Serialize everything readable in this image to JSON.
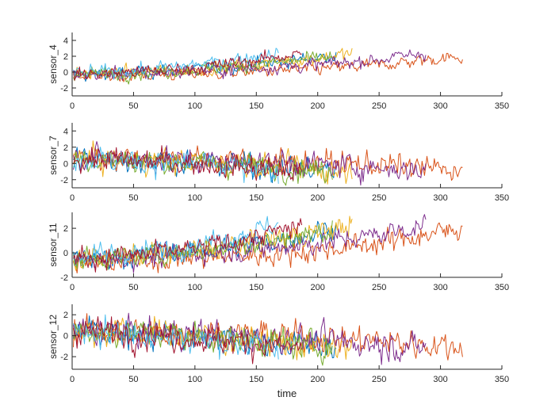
{
  "chart_data": [
    {
      "type": "line",
      "ylabel": "sensor_4",
      "xlim": [
        0,
        350
      ],
      "ylim": [
        -3,
        5
      ],
      "xticks": [
        0,
        50,
        100,
        150,
        200,
        250,
        300,
        350
      ],
      "yticks": [
        -2,
        0,
        2,
        4
      ],
      "series": [
        {
          "x": [
            0,
            50,
            100,
            150,
            200,
            215
          ],
          "y": [
            -0.4,
            -0.1,
            0.3,
            0.9,
            1.9,
            2.2
          ]
        },
        {
          "x": [
            0,
            50,
            100,
            150,
            200,
            250,
            318
          ],
          "y": [
            -0.5,
            -0.4,
            -0.2,
            0.1,
            0.4,
            0.9,
            2.0
          ]
        },
        {
          "x": [
            0,
            50,
            100,
            150,
            200,
            228
          ],
          "y": [
            -0.3,
            -0.1,
            0.3,
            1.1,
            1.8,
            2.4
          ]
        },
        {
          "x": [
            0,
            50,
            100,
            150,
            200,
            250,
            288
          ],
          "y": [
            -0.4,
            -0.2,
            0.1,
            0.5,
            0.9,
            1.6,
            2.4
          ]
        },
        {
          "x": [
            0,
            50,
            100,
            150,
            200,
            212
          ],
          "y": [
            -0.3,
            -0.1,
            0.3,
            1.0,
            1.7,
            2.0
          ]
        },
        {
          "x": [
            0,
            50,
            100,
            150,
            168
          ],
          "y": [
            -0.2,
            0.2,
            0.9,
            2.0,
            2.5
          ]
        },
        {
          "x": [
            0,
            50,
            100,
            150,
            187
          ],
          "y": [
            -0.3,
            0.0,
            0.5,
            1.5,
            2.4
          ]
        }
      ]
    },
    {
      "type": "line",
      "ylabel": "sensor_7",
      "xlim": [
        0,
        350
      ],
      "ylim": [
        -3,
        5
      ],
      "xticks": [
        0,
        50,
        100,
        150,
        200,
        250,
        300,
        350
      ],
      "yticks": [
        -2,
        0,
        2,
        4
      ],
      "series": [
        {
          "x": [
            0,
            50,
            100,
            150,
            200,
            215
          ],
          "y": [
            0.6,
            0.4,
            0.1,
            -0.3,
            -0.8,
            -1.0
          ]
        },
        {
          "x": [
            0,
            50,
            100,
            150,
            200,
            250,
            318
          ],
          "y": [
            0.7,
            0.6,
            0.5,
            0.3,
            0.1,
            -0.2,
            -0.9
          ]
        },
        {
          "x": [
            0,
            50,
            100,
            150,
            200,
            228
          ],
          "y": [
            0.6,
            0.4,
            0.2,
            -0.3,
            -0.8,
            -1.0
          ]
        },
        {
          "x": [
            0,
            50,
            100,
            150,
            200,
            250,
            288
          ],
          "y": [
            0.7,
            0.5,
            0.3,
            0.1,
            -0.2,
            -0.5,
            -0.9
          ]
        },
        {
          "x": [
            0,
            50,
            100,
            150,
            200,
            212
          ],
          "y": [
            0.6,
            0.4,
            0.1,
            -0.3,
            -0.8,
            -0.9
          ]
        },
        {
          "x": [
            0,
            50,
            100,
            150,
            168
          ],
          "y": [
            0.6,
            0.3,
            -0.2,
            -0.9,
            -1.3
          ]
        },
        {
          "x": [
            0,
            50,
            100,
            150,
            187
          ],
          "y": [
            0.7,
            0.4,
            0.0,
            -0.6,
            -1.1
          ]
        }
      ]
    },
    {
      "type": "line",
      "ylabel": "sensor_11",
      "xlim": [
        0,
        350
      ],
      "ylim": [
        -2,
        3.3
      ],
      "xticks": [
        0,
        50,
        100,
        150,
        200,
        250,
        300,
        350
      ],
      "yticks": [
        -2,
        0,
        2
      ],
      "series": [
        {
          "x": [
            0,
            50,
            100,
            150,
            200,
            215
          ],
          "y": [
            -0.5,
            -0.3,
            0.1,
            0.7,
            1.7,
            2.1
          ]
        },
        {
          "x": [
            0,
            50,
            100,
            150,
            200,
            250,
            318
          ],
          "y": [
            -0.8,
            -0.6,
            -0.4,
            -0.2,
            0.2,
            0.8,
            2.0
          ]
        },
        {
          "x": [
            0,
            50,
            100,
            150,
            200,
            228
          ],
          "y": [
            -0.5,
            -0.3,
            0.1,
            0.9,
            1.7,
            2.3
          ]
        },
        {
          "x": [
            0,
            50,
            100,
            150,
            200,
            250,
            288
          ],
          "y": [
            -0.6,
            -0.4,
            -0.1,
            0.3,
            0.8,
            1.5,
            2.3
          ]
        },
        {
          "x": [
            0,
            50,
            100,
            150,
            200,
            212
          ],
          "y": [
            -0.5,
            -0.3,
            0.2,
            0.8,
            1.6,
            1.9
          ]
        },
        {
          "x": [
            0,
            50,
            100,
            150,
            168
          ],
          "y": [
            -0.4,
            0.0,
            0.7,
            1.8,
            2.4
          ]
        },
        {
          "x": [
            0,
            50,
            100,
            150,
            187
          ],
          "y": [
            -0.5,
            -0.2,
            0.3,
            1.3,
            2.2
          ]
        }
      ]
    },
    {
      "type": "line",
      "ylabel": "sensor_12",
      "xlabel": "time",
      "xlim": [
        0,
        350
      ],
      "ylim": [
        -3.2,
        3.0
      ],
      "xticks": [
        0,
        50,
        100,
        150,
        200,
        250,
        300,
        350
      ],
      "yticks": [
        -2,
        0,
        2
      ],
      "series": [
        {
          "x": [
            0,
            50,
            100,
            150,
            200,
            215
          ],
          "y": [
            0.5,
            0.3,
            0.0,
            -0.5,
            -1.0,
            -1.2
          ]
        },
        {
          "x": [
            0,
            50,
            100,
            150,
            200,
            250,
            318
          ],
          "y": [
            0.5,
            0.4,
            0.3,
            0.1,
            -0.2,
            -0.5,
            -1.1
          ]
        },
        {
          "x": [
            0,
            50,
            100,
            150,
            200,
            228
          ],
          "y": [
            0.5,
            0.3,
            0.0,
            -0.5,
            -1.0,
            -1.3
          ]
        },
        {
          "x": [
            0,
            50,
            100,
            150,
            200,
            250,
            288
          ],
          "y": [
            0.5,
            0.4,
            0.2,
            -0.1,
            -0.4,
            -0.8,
            -1.2
          ]
        },
        {
          "x": [
            0,
            50,
            100,
            150,
            200,
            212
          ],
          "y": [
            0.5,
            0.3,
            0.0,
            -0.5,
            -1.0,
            -1.1
          ]
        },
        {
          "x": [
            0,
            50,
            100,
            150,
            168
          ],
          "y": [
            0.5,
            0.2,
            -0.3,
            -1.0,
            -1.4
          ]
        },
        {
          "x": [
            0,
            50,
            100,
            150,
            187
          ],
          "y": [
            0.5,
            0.2,
            -0.2,
            -0.8,
            -1.2
          ]
        }
      ]
    }
  ],
  "colors": [
    "#0072BD",
    "#D95319",
    "#EDB120",
    "#7E2F8E",
    "#77AC30",
    "#4DBEEE",
    "#A2142F"
  ],
  "noise": [
    0.55,
    1.0,
    0.6,
    0.9
  ]
}
